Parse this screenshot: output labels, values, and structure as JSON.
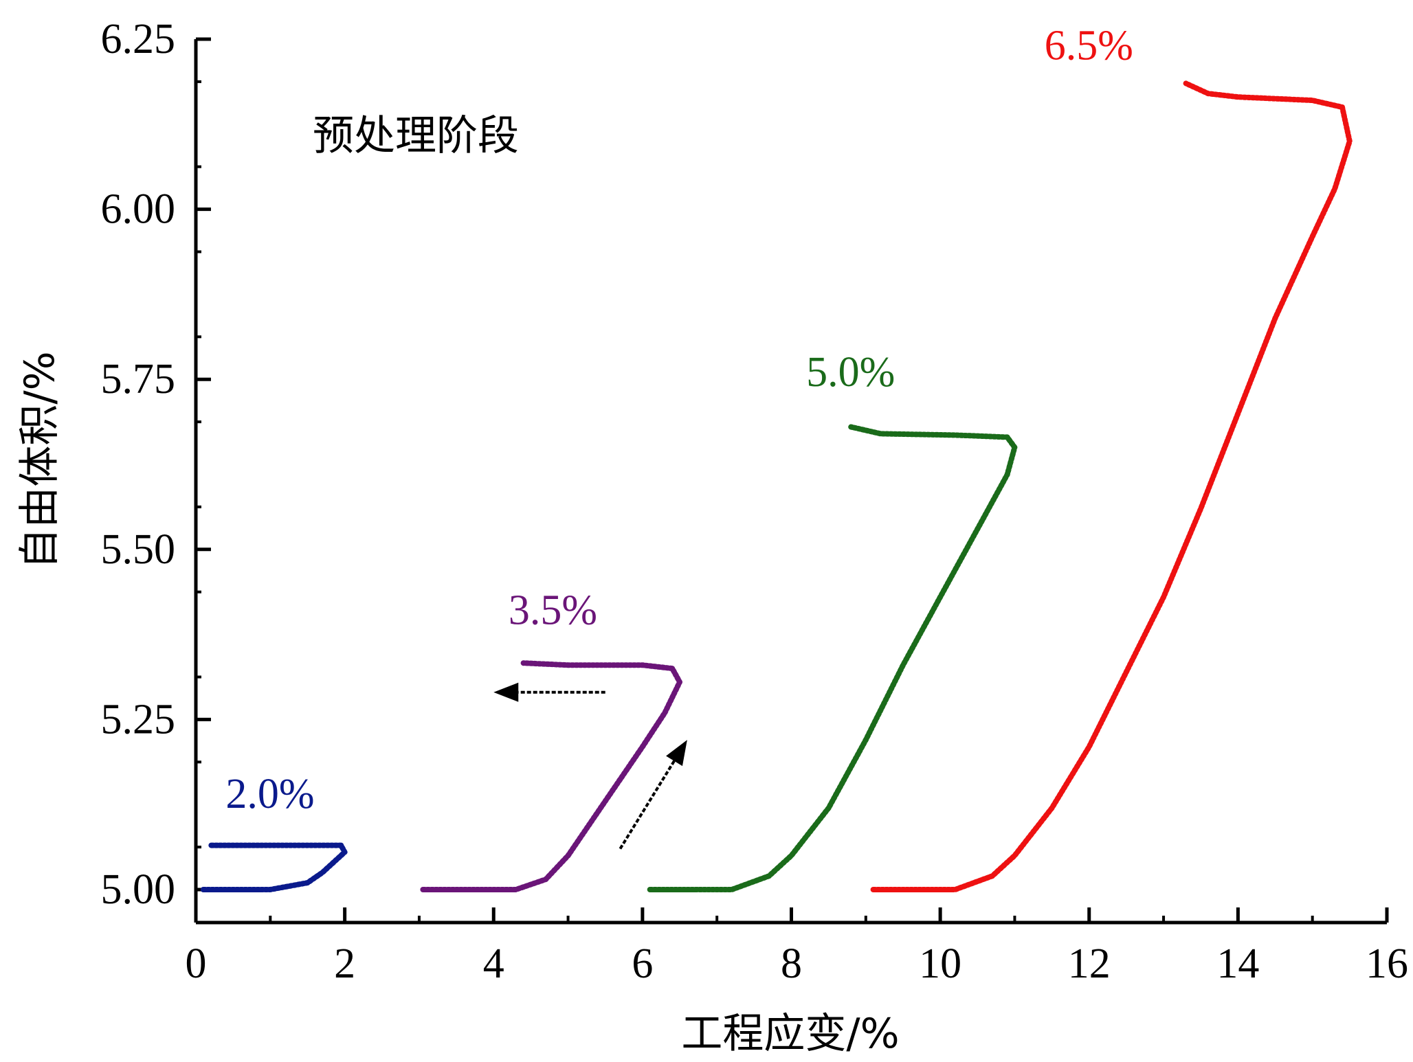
{
  "chart_data": {
    "type": "line",
    "title": "",
    "xlabel": "工程应变/%",
    "ylabel": "自由体积/%",
    "xlim": [
      0,
      16
    ],
    "ylim": [
      4.95,
      6.25
    ],
    "xticks": [
      "0",
      "2",
      "4",
      "6",
      "8",
      "10",
      "12",
      "14",
      "16"
    ],
    "yticks": [
      "5.00",
      "5.25",
      "5.50",
      "5.75",
      "6.00",
      "6.25"
    ],
    "annotation": "预处理阶段",
    "grid": false,
    "series": [
      {
        "name": "2.0%",
        "color": "#0a1a8c",
        "points": [
          [
            0.1,
            5.0
          ],
          [
            1.0,
            5.0
          ],
          [
            1.5,
            5.01
          ],
          [
            1.7,
            5.025
          ],
          [
            2.0,
            5.055
          ],
          [
            1.95,
            5.065
          ],
          [
            1.5,
            5.065
          ],
          [
            0.2,
            5.065
          ]
        ]
      },
      {
        "name": "3.5%",
        "color": "#6a1578",
        "points": [
          [
            3.05,
            5.0
          ],
          [
            4.3,
            5.0
          ],
          [
            4.7,
            5.015
          ],
          [
            5.0,
            5.05
          ],
          [
            5.5,
            5.13
          ],
          [
            6.0,
            5.21
          ],
          [
            6.3,
            5.26
          ],
          [
            6.5,
            5.305
          ],
          [
            6.4,
            5.325
          ],
          [
            6.0,
            5.33
          ],
          [
            5.0,
            5.33
          ],
          [
            4.4,
            5.333
          ]
        ]
      },
      {
        "name": "5.0%",
        "color": "#1a6b1a",
        "points": [
          [
            6.1,
            5.0
          ],
          [
            7.2,
            5.0
          ],
          [
            7.7,
            5.02
          ],
          [
            8.0,
            5.05
          ],
          [
            8.5,
            5.12
          ],
          [
            9.0,
            5.22
          ],
          [
            9.5,
            5.33
          ],
          [
            10.0,
            5.43
          ],
          [
            10.5,
            5.53
          ],
          [
            10.9,
            5.61
          ],
          [
            11.0,
            5.65
          ],
          [
            10.9,
            5.665
          ],
          [
            10.2,
            5.668
          ],
          [
            9.2,
            5.67
          ],
          [
            8.8,
            5.68
          ]
        ]
      },
      {
        "name": "6.5%",
        "color": "#ee1111",
        "points": [
          [
            9.1,
            5.0
          ],
          [
            10.2,
            5.0
          ],
          [
            10.7,
            5.02
          ],
          [
            11.0,
            5.05
          ],
          [
            11.5,
            5.12
          ],
          [
            12.0,
            5.21
          ],
          [
            12.5,
            5.32
          ],
          [
            13.0,
            5.43
          ],
          [
            13.5,
            5.56
          ],
          [
            14.0,
            5.7
          ],
          [
            14.5,
            5.84
          ],
          [
            15.0,
            5.96
          ],
          [
            15.3,
            6.03
          ],
          [
            15.5,
            6.1
          ],
          [
            15.4,
            6.15
          ],
          [
            15.0,
            6.16
          ],
          [
            14.0,
            6.165
          ],
          [
            13.6,
            6.17
          ],
          [
            13.3,
            6.185
          ]
        ]
      }
    ],
    "arrows": [
      {
        "from": [
          5.5,
          5.29
        ],
        "to": [
          4.0,
          5.29
        ]
      },
      {
        "from": [
          5.7,
          5.06
        ],
        "to": [
          6.6,
          5.22
        ]
      }
    ]
  }
}
